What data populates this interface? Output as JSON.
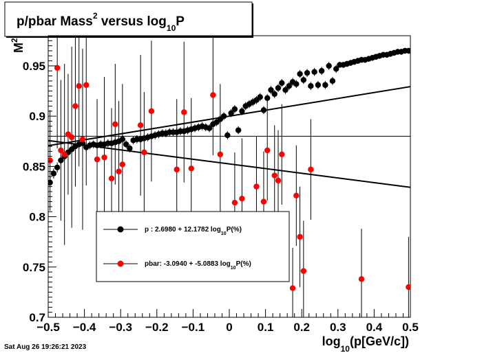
{
  "chart_data": {
    "type": "scatter",
    "title": {
      "main": "p/pbar Mass",
      "sup": "2",
      "mid": " versus log",
      "sub": "10",
      "end": "P"
    },
    "ylabel": {
      "main": "M",
      "sup": "2"
    },
    "xlabel": {
      "pre": "log",
      "sub": "10",
      "post": "(p[GeV/c])"
    },
    "xlim": [
      -0.5,
      0.5
    ],
    "ylim": [
      0.7,
      0.98
    ],
    "xticks": [
      "−0.5",
      "−0.4",
      "−0.3",
      "−0.2",
      "−0.1",
      "0",
      "0.1",
      "0.2",
      "0.3",
      "0.4",
      "0.5"
    ],
    "xtick_values": [
      -0.5,
      -0.4,
      -0.3,
      -0.2,
      -0.1,
      0,
      0.1,
      0.2,
      0.3,
      0.4,
      0.5
    ],
    "yticks": [
      "0.7",
      "0.75",
      "0.8",
      "0.85",
      "0.9",
      "0.95"
    ],
    "ytick_values": [
      0.7,
      0.75,
      0.8,
      0.85,
      0.9,
      0.95
    ],
    "reference_line_y": 0.88,
    "legend": {
      "position": "lower-left",
      "entries": [
        {
          "series": "p",
          "pre": "p   : 2.6980 + 12.1782 log",
          "sub": "10",
          "post": "P(%)"
        },
        {
          "series": "pbar",
          "pre": "pbar: -3.0940 + -5.0883 log",
          "sub": "10",
          "post": "P(%)"
        }
      ]
    },
    "timestamp": "Sat Aug 26 19:26:21 2023",
    "series": [
      {
        "name": "p",
        "color": "#000000",
        "fit": {
          "intercept": 0.9,
          "slope": 0.0587
        },
        "points": [
          [
            -0.495,
            0.834,
            0.005
          ],
          [
            -0.485,
            0.843,
            0.005
          ],
          [
            -0.475,
            0.849,
            0.005
          ],
          [
            -0.465,
            0.856,
            0.005
          ],
          [
            -0.455,
            0.86,
            0.004
          ],
          [
            -0.445,
            0.864,
            0.004
          ],
          [
            -0.435,
            0.867,
            0.004
          ],
          [
            -0.425,
            0.87,
            0.004
          ],
          [
            -0.415,
            0.872,
            0.004
          ],
          [
            -0.405,
            0.873,
            0.004
          ],
          [
            -0.395,
            0.869,
            0.004
          ],
          [
            -0.385,
            0.871,
            0.004
          ],
          [
            -0.375,
            0.872,
            0.004
          ],
          [
            -0.365,
            0.871,
            0.004
          ],
          [
            -0.355,
            0.872,
            0.004
          ],
          [
            -0.345,
            0.872,
            0.004
          ],
          [
            -0.335,
            0.873,
            0.004
          ],
          [
            -0.325,
            0.873,
            0.004
          ],
          [
            -0.315,
            0.874,
            0.004
          ],
          [
            -0.305,
            0.875,
            0.004
          ],
          [
            -0.295,
            0.877,
            0.004
          ],
          [
            -0.285,
            0.872,
            0.004
          ],
          [
            -0.275,
            0.868,
            0.004
          ],
          [
            -0.265,
            0.876,
            0.004
          ],
          [
            -0.255,
            0.877,
            0.004
          ],
          [
            -0.245,
            0.877,
            0.004
          ],
          [
            -0.235,
            0.878,
            0.004
          ],
          [
            -0.225,
            0.879,
            0.004
          ],
          [
            -0.215,
            0.88,
            0.004
          ],
          [
            -0.205,
            0.881,
            0.004
          ],
          [
            -0.195,
            0.882,
            0.004
          ],
          [
            -0.185,
            0.883,
            0.004
          ],
          [
            -0.175,
            0.883,
            0.004
          ],
          [
            -0.165,
            0.884,
            0.004
          ],
          [
            -0.155,
            0.884,
            0.004
          ],
          [
            -0.145,
            0.884,
            0.004
          ],
          [
            -0.135,
            0.885,
            0.004
          ],
          [
            -0.125,
            0.885,
            0.004
          ],
          [
            -0.115,
            0.886,
            0.004
          ],
          [
            -0.105,
            0.887,
            0.004
          ],
          [
            -0.095,
            0.888,
            0.004
          ],
          [
            -0.085,
            0.889,
            0.004
          ],
          [
            -0.075,
            0.89,
            0.004
          ],
          [
            -0.065,
            0.889,
            0.004
          ],
          [
            -0.055,
            0.888,
            0.004
          ],
          [
            -0.045,
            0.892,
            0.004
          ],
          [
            -0.035,
            0.894,
            0.004
          ],
          [
            -0.025,
            0.897,
            0.004
          ],
          [
            -0.015,
            0.9,
            0.004
          ],
          [
            -0.005,
            0.881,
            0.004
          ],
          [
            0.005,
            0.903,
            0.004
          ],
          [
            0.015,
            0.907,
            0.004
          ],
          [
            0.025,
            0.886,
            0.004
          ],
          [
            0.035,
            0.905,
            0.004
          ],
          [
            0.045,
            0.91,
            0.004
          ],
          [
            0.055,
            0.912,
            0.004
          ],
          [
            0.065,
            0.914,
            0.004
          ],
          [
            0.075,
            0.916,
            0.004
          ],
          [
            0.085,
            0.919,
            0.004
          ],
          [
            0.095,
            0.906,
            0.004
          ],
          [
            0.105,
            0.918,
            0.004
          ],
          [
            0.115,
            0.926,
            0.004
          ],
          [
            0.125,
            0.922,
            0.004
          ],
          [
            0.135,
            0.928,
            0.004
          ],
          [
            0.145,
            0.933,
            0.004
          ],
          [
            0.155,
            0.926,
            0.004
          ],
          [
            0.165,
            0.93,
            0.004
          ],
          [
            0.175,
            0.934,
            0.004
          ],
          [
            0.185,
            0.932,
            0.004
          ],
          [
            0.195,
            0.942,
            0.004
          ],
          [
            0.205,
            0.936,
            0.004
          ],
          [
            0.215,
            0.943,
            0.004
          ],
          [
            0.225,
            0.93,
            0.004
          ],
          [
            0.235,
            0.944,
            0.004
          ],
          [
            0.245,
            0.931,
            0.004
          ],
          [
            0.255,
            0.945,
            0.004
          ],
          [
            0.265,
            0.931,
            0.004
          ],
          [
            0.275,
            0.95,
            0.004
          ],
          [
            0.285,
            0.935,
            0.004
          ],
          [
            0.295,
            0.947,
            0.004
          ],
          [
            0.305,
            0.951,
            0.003
          ],
          [
            0.315,
            0.951,
            0.003
          ],
          [
            0.325,
            0.952,
            0.003
          ],
          [
            0.335,
            0.953,
            0.003
          ],
          [
            0.345,
            0.954,
            0.003
          ],
          [
            0.355,
            0.955,
            0.003
          ],
          [
            0.365,
            0.956,
            0.003
          ],
          [
            0.375,
            0.956,
            0.003
          ],
          [
            0.385,
            0.957,
            0.003
          ],
          [
            0.395,
            0.958,
            0.003
          ],
          [
            0.405,
            0.959,
            0.003
          ],
          [
            0.415,
            0.96,
            0.003
          ],
          [
            0.425,
            0.961,
            0.003
          ],
          [
            0.435,
            0.961,
            0.003
          ],
          [
            0.445,
            0.962,
            0.003
          ],
          [
            0.455,
            0.963,
            0.003
          ],
          [
            0.465,
            0.964,
            0.003
          ],
          [
            0.475,
            0.964,
            0.003
          ],
          [
            0.485,
            0.965,
            0.003
          ],
          [
            0.495,
            0.965,
            0.003
          ]
        ]
      },
      {
        "name": "pbar",
        "color": "#ff0000",
        "fit": {
          "intercept": 0.8525,
          "slope": -0.0465
        },
        "points": [
          [
            -0.495,
            0.856,
            0.05
          ],
          [
            -0.475,
            0.948,
            0.08
          ],
          [
            -0.465,
            0.866,
            0.07
          ],
          [
            -0.455,
            0.862,
            0.09
          ],
          [
            -0.445,
            0.882,
            0.06
          ],
          [
            -0.435,
            0.879,
            0.09
          ],
          [
            -0.425,
            0.91,
            0.08
          ],
          [
            -0.415,
            0.93,
            0.08
          ],
          [
            -0.405,
            0.877,
            0.09
          ],
          [
            -0.395,
            0.931,
            0.1
          ],
          [
            -0.365,
            0.857,
            0.06
          ],
          [
            -0.345,
            0.859,
            0.08
          ],
          [
            -0.325,
            0.838,
            0.07
          ],
          [
            -0.315,
            0.892,
            0.06
          ],
          [
            -0.305,
            0.845,
            0.07
          ],
          [
            -0.295,
            0.852,
            0.08
          ],
          [
            -0.245,
            0.891,
            0.07
          ],
          [
            -0.235,
            0.864,
            0.06
          ],
          [
            -0.215,
            0.905,
            0.07
          ],
          [
            -0.145,
            0.847,
            0.07
          ],
          [
            -0.125,
            0.904,
            0.07
          ],
          [
            -0.105,
            0.848,
            0.07
          ],
          [
            -0.045,
            0.921,
            0.06
          ],
          [
            -0.025,
            0.862,
            0.07
          ],
          [
            0.015,
            0.814,
            0.05
          ],
          [
            0.035,
            0.818,
            0.06
          ],
          [
            0.075,
            0.83,
            0.05
          ],
          [
            0.095,
            0.815,
            0.05
          ],
          [
            0.105,
            0.866,
            0.05
          ],
          [
            0.125,
            0.841,
            0.05
          ],
          [
            0.135,
            0.836,
            0.05
          ],
          [
            0.145,
            0.862,
            0.05
          ],
          [
            0.175,
            0.729,
            0.04
          ],
          [
            0.185,
            0.821,
            0.05
          ],
          [
            0.195,
            0.78,
            0.05
          ],
          [
            0.205,
            0.746,
            0.05
          ],
          [
            0.225,
            0.847,
            0.05
          ],
          [
            0.365,
            0.738,
            0.05
          ],
          [
            0.495,
            0.73,
            0.05
          ]
        ]
      }
    ]
  }
}
